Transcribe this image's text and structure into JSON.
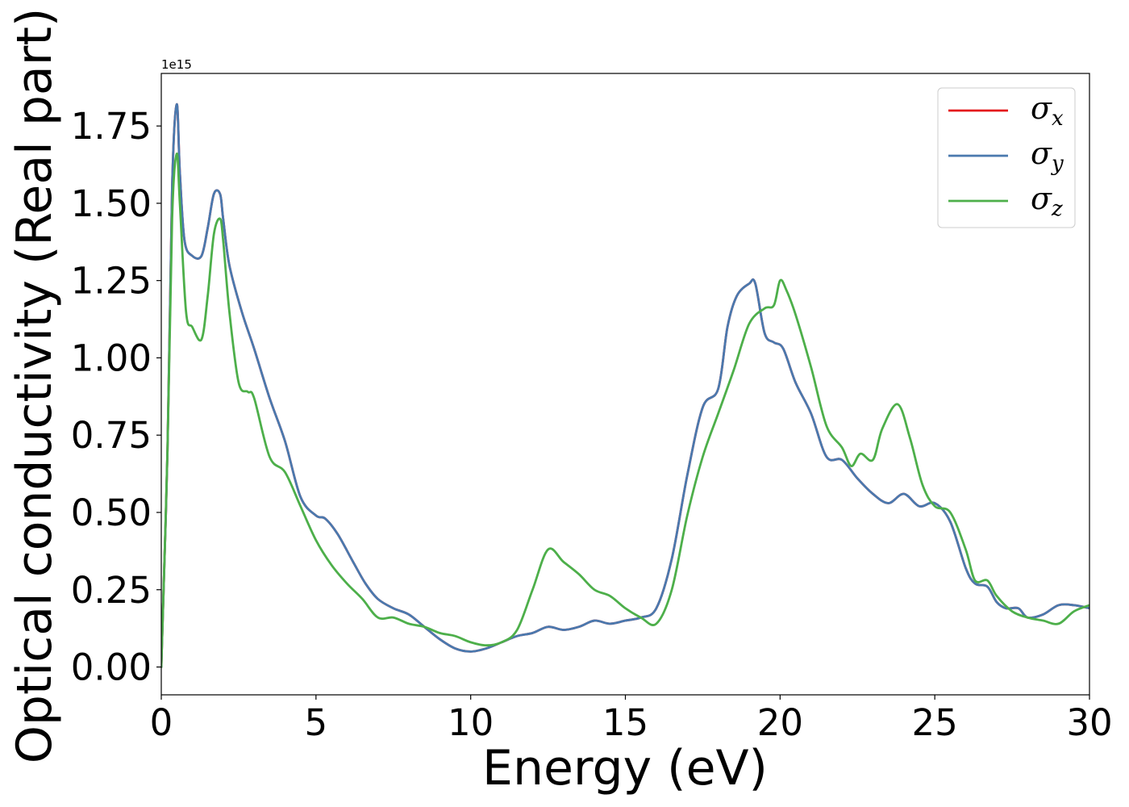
{
  "chart_data": {
    "type": "line",
    "title": "",
    "xlabel": "Energy (eV)",
    "ylabel": "Optical conductivity (Real part)",
    "y_offset_text": "1e15",
    "y_scale": 1000000000000000.0,
    "xlim": [
      0,
      30
    ],
    "ylim": [
      -0.09,
      1.92
    ],
    "x_ticks": [
      0,
      5,
      10,
      15,
      20,
      25,
      30
    ],
    "x_tick_labels": [
      "0",
      "5",
      "10",
      "15",
      "20",
      "25",
      "30"
    ],
    "y_ticks": [
      0.0,
      0.25,
      0.5,
      0.75,
      1.0,
      1.25,
      1.5,
      1.75
    ],
    "y_tick_labels": [
      "0.00",
      "0.25",
      "0.50",
      "0.75",
      "1.00",
      "1.25",
      "1.50",
      "1.75"
    ],
    "grid": false,
    "legend_position": "top-right",
    "series": [
      {
        "name": "σx",
        "symbol": "σ",
        "subscript": "x",
        "color": "#e41a1c",
        "x": [
          0,
          0.2,
          0.35,
          0.5,
          0.6,
          0.75,
          1.0,
          1.3,
          1.5,
          1.7,
          1.9,
          2.0,
          2.2,
          2.6,
          3.0,
          3.5,
          4.0,
          4.5,
          5.0,
          5.3,
          5.7,
          6.2,
          6.6,
          7.0,
          7.5,
          8.0,
          8.5,
          9.0,
          9.5,
          10.0,
          10.5,
          11.0,
          11.5,
          12.0,
          12.5,
          13.0,
          13.5,
          14.0,
          14.5,
          15.0,
          15.5,
          16.0,
          16.5,
          17.0,
          17.5,
          18.0,
          18.3,
          18.6,
          19.0,
          19.2,
          19.5,
          19.8,
          20.1,
          20.5,
          21.0,
          21.5,
          22.0,
          22.5,
          23.0,
          23.5,
          24.0,
          24.5,
          25.0,
          25.5,
          26.0,
          26.3,
          26.7,
          27.0,
          27.3,
          27.7,
          28.0,
          28.5,
          29.0,
          29.5,
          30.0
        ],
        "values": [
          0,
          0.7,
          1.55,
          1.82,
          1.6,
          1.38,
          1.33,
          1.33,
          1.42,
          1.53,
          1.53,
          1.45,
          1.3,
          1.15,
          1.03,
          0.87,
          0.73,
          0.55,
          0.49,
          0.48,
          0.43,
          0.34,
          0.27,
          0.22,
          0.19,
          0.17,
          0.13,
          0.09,
          0.06,
          0.05,
          0.06,
          0.08,
          0.1,
          0.11,
          0.13,
          0.12,
          0.13,
          0.15,
          0.14,
          0.15,
          0.16,
          0.19,
          0.35,
          0.62,
          0.84,
          0.9,
          1.1,
          1.2,
          1.24,
          1.24,
          1.08,
          1.05,
          1.03,
          0.92,
          0.82,
          0.68,
          0.67,
          0.61,
          0.56,
          0.53,
          0.56,
          0.52,
          0.53,
          0.47,
          0.32,
          0.27,
          0.26,
          0.21,
          0.19,
          0.19,
          0.16,
          0.17,
          0.2,
          0.2,
          0.19
        ]
      },
      {
        "name": "σy",
        "symbol": "σ",
        "subscript": "y",
        "color": "#4a79ae",
        "x": [
          0,
          0.2,
          0.35,
          0.5,
          0.6,
          0.75,
          1.0,
          1.3,
          1.5,
          1.7,
          1.9,
          2.0,
          2.2,
          2.6,
          3.0,
          3.5,
          4.0,
          4.5,
          5.0,
          5.3,
          5.7,
          6.2,
          6.6,
          7.0,
          7.5,
          8.0,
          8.5,
          9.0,
          9.5,
          10.0,
          10.5,
          11.0,
          11.5,
          12.0,
          12.5,
          13.0,
          13.5,
          14.0,
          14.5,
          15.0,
          15.5,
          16.0,
          16.5,
          17.0,
          17.5,
          18.0,
          18.3,
          18.6,
          19.0,
          19.2,
          19.5,
          19.8,
          20.1,
          20.5,
          21.0,
          21.5,
          22.0,
          22.5,
          23.0,
          23.5,
          24.0,
          24.5,
          25.0,
          25.5,
          26.0,
          26.3,
          26.7,
          27.0,
          27.3,
          27.7,
          28.0,
          28.5,
          29.0,
          29.5,
          30.0
        ],
        "values": [
          0,
          0.7,
          1.55,
          1.82,
          1.6,
          1.38,
          1.33,
          1.33,
          1.42,
          1.53,
          1.53,
          1.45,
          1.3,
          1.15,
          1.03,
          0.87,
          0.73,
          0.55,
          0.49,
          0.48,
          0.43,
          0.34,
          0.27,
          0.22,
          0.19,
          0.17,
          0.13,
          0.09,
          0.06,
          0.05,
          0.06,
          0.08,
          0.1,
          0.11,
          0.13,
          0.12,
          0.13,
          0.15,
          0.14,
          0.15,
          0.16,
          0.19,
          0.35,
          0.62,
          0.84,
          0.9,
          1.1,
          1.2,
          1.24,
          1.24,
          1.08,
          1.05,
          1.03,
          0.92,
          0.82,
          0.68,
          0.67,
          0.61,
          0.56,
          0.53,
          0.56,
          0.52,
          0.53,
          0.47,
          0.32,
          0.27,
          0.26,
          0.21,
          0.19,
          0.19,
          0.16,
          0.17,
          0.2,
          0.2,
          0.19
        ]
      },
      {
        "name": "σz",
        "symbol": "σ",
        "subscript": "z",
        "color": "#4daf4a",
        "x": [
          0,
          0.2,
          0.35,
          0.5,
          0.6,
          0.8,
          1.0,
          1.3,
          1.5,
          1.7,
          1.9,
          2.0,
          2.2,
          2.5,
          2.8,
          3.0,
          3.5,
          4.0,
          4.5,
          5.0,
          5.5,
          6.0,
          6.5,
          7.0,
          7.5,
          8.0,
          8.5,
          9.0,
          9.5,
          10.0,
          10.5,
          11.0,
          11.5,
          12.0,
          12.5,
          13.0,
          13.5,
          14.0,
          14.5,
          15.0,
          15.5,
          16.0,
          16.5,
          17.0,
          17.5,
          18.0,
          18.5,
          19.0,
          19.5,
          19.8,
          20.0,
          20.2,
          20.5,
          21.0,
          21.5,
          22.0,
          22.3,
          22.6,
          23.0,
          23.3,
          23.8,
          24.2,
          24.6,
          25.0,
          25.5,
          26.0,
          26.3,
          26.7,
          27.0,
          27.5,
          28.0,
          28.5,
          29.0,
          29.5,
          30.0
        ],
        "values": [
          0,
          0.7,
          1.45,
          1.66,
          1.5,
          1.15,
          1.1,
          1.06,
          1.2,
          1.4,
          1.45,
          1.38,
          1.15,
          0.92,
          0.89,
          0.87,
          0.68,
          0.63,
          0.52,
          0.41,
          0.33,
          0.27,
          0.22,
          0.16,
          0.16,
          0.14,
          0.13,
          0.11,
          0.1,
          0.08,
          0.07,
          0.08,
          0.12,
          0.25,
          0.38,
          0.34,
          0.3,
          0.25,
          0.23,
          0.19,
          0.16,
          0.14,
          0.25,
          0.49,
          0.68,
          0.82,
          0.96,
          1.11,
          1.16,
          1.17,
          1.25,
          1.22,
          1.14,
          0.97,
          0.78,
          0.71,
          0.65,
          0.69,
          0.67,
          0.77,
          0.85,
          0.74,
          0.59,
          0.52,
          0.5,
          0.38,
          0.28,
          0.28,
          0.23,
          0.18,
          0.16,
          0.15,
          0.14,
          0.18,
          0.2
        ]
      }
    ]
  }
}
